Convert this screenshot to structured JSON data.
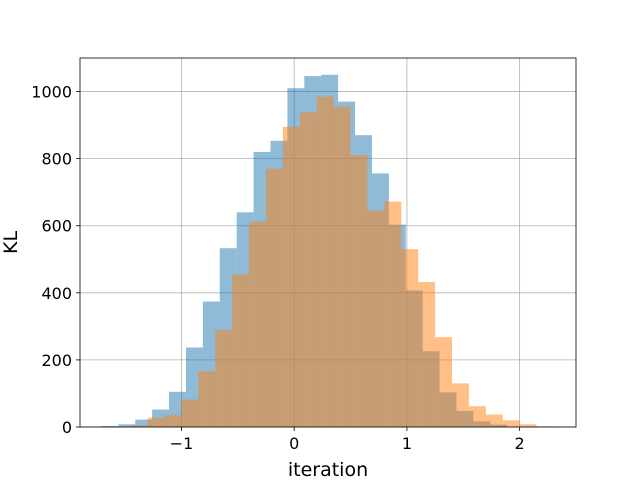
{
  "chart_data": {
    "type": "bar",
    "title": "",
    "xlabel": "iteration",
    "ylabel": "KL",
    "xlim": [
      -1.9,
      2.5
    ],
    "ylim": [
      0,
      1100
    ],
    "xticks": [
      -1,
      0,
      1,
      2
    ],
    "xtick_labels": [
      "−1",
      "0",
      "1",
      "2"
    ],
    "yticks": [
      0,
      200,
      400,
      600,
      800,
      1000
    ],
    "ytick_labels": [
      "0",
      "200",
      "400",
      "600",
      "800",
      "1000"
    ],
    "grid": true,
    "legend": "none",
    "series": [
      {
        "color": "#1f77b4",
        "alpha": 0.5,
        "bins": [
          {
            "x0": -1.71,
            "x1": -1.56,
            "value": 3
          },
          {
            "x0": -1.56,
            "x1": -1.41,
            "value": 8
          },
          {
            "x0": -1.41,
            "x1": -1.26,
            "value": 22
          },
          {
            "x0": -1.26,
            "x1": -1.11,
            "value": 52
          },
          {
            "x0": -1.11,
            "x1": -0.96,
            "value": 105
          },
          {
            "x0": -0.96,
            "x1": -0.81,
            "value": 237
          },
          {
            "x0": -0.81,
            "x1": -0.66,
            "value": 374
          },
          {
            "x0": -0.66,
            "x1": -0.51,
            "value": 533
          },
          {
            "x0": -0.51,
            "x1": -0.36,
            "value": 640
          },
          {
            "x0": -0.36,
            "x1": -0.21,
            "value": 820
          },
          {
            "x0": -0.21,
            "x1": -0.06,
            "value": 853
          },
          {
            "x0": -0.06,
            "x1": 0.09,
            "value": 1010
          },
          {
            "x0": 0.09,
            "x1": 0.24,
            "value": 1046
          },
          {
            "x0": 0.24,
            "x1": 0.39,
            "value": 1050
          },
          {
            "x0": 0.39,
            "x1": 0.54,
            "value": 970
          },
          {
            "x0": 0.54,
            "x1": 0.69,
            "value": 870
          },
          {
            "x0": 0.69,
            "x1": 0.84,
            "value": 756
          },
          {
            "x0": 0.84,
            "x1": 0.99,
            "value": 603
          },
          {
            "x0": 0.99,
            "x1": 1.14,
            "value": 407
          },
          {
            "x0": 1.14,
            "x1": 1.29,
            "value": 226
          },
          {
            "x0": 1.29,
            "x1": 1.44,
            "value": 103
          },
          {
            "x0": 1.44,
            "x1": 1.59,
            "value": 48
          },
          {
            "x0": 1.59,
            "x1": 1.74,
            "value": 17
          },
          {
            "x0": 1.74,
            "x1": 1.89,
            "value": 7
          }
        ]
      },
      {
        "color": "#ff7f0e",
        "alpha": 0.5,
        "bins": [
          {
            "x0": -1.45,
            "x1": -1.3,
            "value": 4
          },
          {
            "x0": -1.3,
            "x1": -1.15,
            "value": 28
          },
          {
            "x0": -1.15,
            "x1": -1.0,
            "value": 35
          },
          {
            "x0": -1.0,
            "x1": -0.85,
            "value": 82
          },
          {
            "x0": -0.85,
            "x1": -0.7,
            "value": 166
          },
          {
            "x0": -0.7,
            "x1": -0.55,
            "value": 290
          },
          {
            "x0": -0.55,
            "x1": -0.4,
            "value": 455
          },
          {
            "x0": -0.4,
            "x1": -0.25,
            "value": 612
          },
          {
            "x0": -0.25,
            "x1": -0.1,
            "value": 770
          },
          {
            "x0": -0.1,
            "x1": 0.05,
            "value": 895
          },
          {
            "x0": 0.05,
            "x1": 0.2,
            "value": 938
          },
          {
            "x0": 0.2,
            "x1": 0.35,
            "value": 985
          },
          {
            "x0": 0.35,
            "x1": 0.5,
            "value": 955
          },
          {
            "x0": 0.5,
            "x1": 0.65,
            "value": 810
          },
          {
            "x0": 0.65,
            "x1": 0.8,
            "value": 645
          },
          {
            "x0": 0.8,
            "x1": 0.95,
            "value": 672
          },
          {
            "x0": 0.95,
            "x1": 1.1,
            "value": 530
          },
          {
            "x0": 1.1,
            "x1": 1.25,
            "value": 432
          },
          {
            "x0": 1.25,
            "x1": 1.4,
            "value": 268
          },
          {
            "x0": 1.4,
            "x1": 1.55,
            "value": 130
          },
          {
            "x0": 1.55,
            "x1": 1.7,
            "value": 62
          },
          {
            "x0": 1.7,
            "x1": 1.85,
            "value": 37
          },
          {
            "x0": 1.85,
            "x1": 2.0,
            "value": 20
          },
          {
            "x0": 2.0,
            "x1": 2.15,
            "value": 8
          },
          {
            "x0": 2.15,
            "x1": 2.3,
            "value": 2
          }
        ]
      }
    ]
  }
}
